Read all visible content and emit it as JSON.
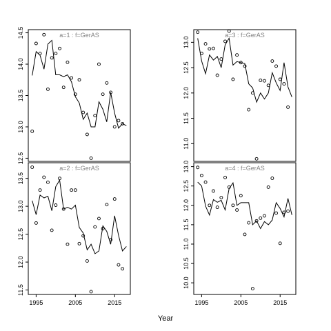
{
  "figure": {
    "xlabel": "Year"
  },
  "chart_data": [
    {
      "type": "scatter",
      "title": "a=1  :  f=GerAS",
      "xlim": [
        1993,
        2019
      ],
      "ylim": [
        12.45,
        14.55
      ],
      "yticks": [
        12.5,
        13.0,
        13.5,
        14.0,
        14.5
      ],
      "xticks": [
        1995,
        2005,
        2015
      ],
      "series": [
        {
          "type": "scatter",
          "x": [
            1994,
            1995,
            1996,
            1997,
            1998,
            1999,
            2000,
            2001,
            2002,
            2003,
            2004,
            2005,
            2006,
            2007,
            2008,
            2009,
            2010,
            2011,
            2012,
            2013,
            2014,
            2015,
            2016,
            2017
          ],
          "y": [
            12.93,
            14.33,
            14.17,
            14.47,
            13.6,
            14.1,
            14.17,
            14.25,
            13.63,
            14.03,
            13.78,
            13.52,
            13.75,
            13.23,
            12.88,
            12.5,
            13.18,
            14.0,
            13.52,
            13.7,
            13.55,
            13.0,
            13.1,
            13.05
          ]
        },
        {
          "type": "line",
          "x": [
            1994,
            1995,
            1996,
            1997,
            1998,
            1999,
            2000,
            2001,
            2002,
            2003,
            2004,
            2005,
            2006,
            2007,
            2008,
            2009,
            2010,
            2011,
            2012,
            2013,
            2014,
            2015,
            2016,
            2017,
            2018
          ],
          "y": [
            13.82,
            14.2,
            14.14,
            13.92,
            14.32,
            14.38,
            13.83,
            13.83,
            13.8,
            13.83,
            13.72,
            13.48,
            13.38,
            13.12,
            13.22,
            13.0,
            13.0,
            13.4,
            13.28,
            13.08,
            13.55,
            13.22,
            12.98,
            13.05,
            13.02
          ]
        }
      ]
    },
    {
      "type": "scatter",
      "title": "a=3  :  f=GerAS",
      "xlim": [
        1993,
        2019
      ],
      "ylim": [
        10.65,
        13.25
      ],
      "yticks": [
        11.0,
        11.5,
        12.0,
        12.5,
        13.0
      ],
      "xticks": [
        1995,
        2005,
        2015
      ],
      "series": [
        {
          "type": "scatter",
          "x": [
            1994,
            1995,
            1996,
            1997,
            1998,
            1999,
            2000,
            2001,
            2002,
            2003,
            2004,
            2005,
            2006,
            2007,
            2008,
            2009,
            2010,
            2011,
            2012,
            2013,
            2014,
            2015,
            2016,
            2017
          ],
          "y": [
            13.2,
            12.78,
            12.97,
            12.87,
            12.88,
            12.35,
            12.67,
            13.02,
            13.22,
            12.27,
            12.75,
            12.6,
            12.53,
            11.67,
            12.0,
            10.7,
            12.25,
            12.24,
            12.15,
            12.63,
            12.53,
            12.27,
            12.18,
            11.72
          ]
        },
        {
          "type": "line",
          "x": [
            1994,
            1995,
            1996,
            1997,
            1998,
            1999,
            2000,
            2001,
            2002,
            2003,
            2004,
            2005,
            2006,
            2007,
            2008,
            2009,
            2010,
            2011,
            2012,
            2013,
            2014,
            2015,
            2016,
            2017,
            2018
          ],
          "y": [
            13.08,
            12.63,
            12.38,
            12.75,
            12.65,
            12.72,
            12.5,
            12.95,
            13.08,
            12.55,
            12.62,
            12.6,
            12.58,
            12.18,
            12.1,
            11.82,
            12.0,
            11.88,
            12.0,
            12.4,
            12.2,
            12.05,
            12.6,
            12.12,
            11.92
          ]
        }
      ]
    },
    {
      "type": "scatter",
      "title": "a=2  :  f=GerAS",
      "xlim": [
        1993,
        2019
      ],
      "ylim": [
        11.42,
        13.78
      ],
      "yticks": [
        11.5,
        12.0,
        12.5,
        13.0,
        13.5
      ],
      "xticks": [
        1995,
        2005,
        2015
      ],
      "series": [
        {
          "type": "scatter",
          "x": [
            1994,
            1995,
            1996,
            1997,
            1998,
            1999,
            2000,
            2001,
            2002,
            2003,
            2004,
            2005,
            2006,
            2007,
            2008,
            2009,
            2010,
            2011,
            2012,
            2013,
            2014,
            2015,
            2016,
            2017
          ],
          "y": [
            13.7,
            12.7,
            13.29,
            13.52,
            13.43,
            12.57,
            13.02,
            13.5,
            12.95,
            12.32,
            13.29,
            13.29,
            12.33,
            12.47,
            12.02,
            11.47,
            12.63,
            12.78,
            12.6,
            13.03,
            12.4,
            13.13,
            11.95,
            11.88
          ]
        },
        {
          "type": "line",
          "x": [
            1994,
            1995,
            1996,
            1997,
            1998,
            1999,
            2000,
            2001,
            2002,
            2003,
            2004,
            2005,
            2006,
            2007,
            2008,
            2009,
            2010,
            2011,
            2012,
            2013,
            2014,
            2015,
            2016,
            2017,
            2018
          ],
          "y": [
            13.1,
            12.85,
            13.2,
            13.15,
            13.18,
            12.92,
            13.35,
            13.47,
            12.95,
            12.98,
            12.95,
            13.02,
            12.62,
            12.52,
            12.22,
            12.32,
            12.15,
            12.2,
            12.65,
            12.55,
            12.32,
            12.83,
            12.48,
            12.2,
            12.28
          ]
        }
      ]
    },
    {
      "type": "scatter",
      "title": "a=4  :  f=GerAS",
      "xlim": [
        1993,
        2019
      ],
      "ylim": [
        9.7,
        13.1
      ],
      "yticks": [
        10.0,
        10.5,
        11.0,
        11.5,
        12.0,
        12.5,
        13.0
      ],
      "xticks": [
        1995,
        2005,
        2015
      ],
      "series": [
        {
          "type": "scatter",
          "x": [
            1994,
            1995,
            1996,
            1997,
            1998,
            1999,
            2000,
            2001,
            2002,
            2003,
            2004,
            2005,
            2006,
            2007,
            2008,
            2009,
            2010,
            2011,
            2012,
            2013,
            2014,
            2015,
            2016,
            2017
          ],
          "y": [
            12.98,
            12.77,
            12.6,
            12.0,
            12.37,
            11.95,
            12.2,
            12.72,
            12.47,
            12.0,
            11.88,
            12.25,
            11.25,
            11.55,
            9.85,
            11.6,
            11.67,
            11.73,
            12.47,
            12.7,
            11.8,
            11.02,
            11.82,
            11.85
          ]
        },
        {
          "type": "line",
          "x": [
            1994,
            1995,
            1996,
            1997,
            1998,
            1999,
            2000,
            2001,
            2002,
            2003,
            2004,
            2005,
            2006,
            2007,
            2008,
            2009,
            2010,
            2011,
            2012,
            2013,
            2014,
            2015,
            2016,
            2017,
            2018
          ],
          "y": [
            12.6,
            12.5,
            11.98,
            11.75,
            12.15,
            12.08,
            12.13,
            11.88,
            12.43,
            12.58,
            12.0,
            12.07,
            12.07,
            12.07,
            11.5,
            11.6,
            11.4,
            11.58,
            11.5,
            11.62,
            12.07,
            11.92,
            11.7,
            12.18,
            11.75
          ]
        }
      ]
    }
  ]
}
